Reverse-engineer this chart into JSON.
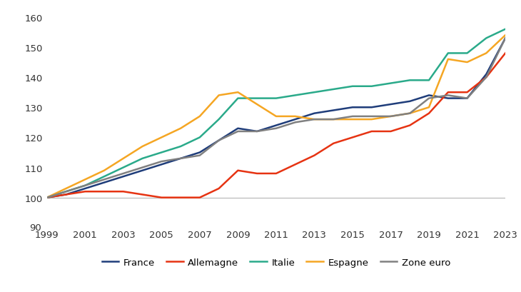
{
  "years": [
    1999,
    2000,
    2001,
    2002,
    2003,
    2004,
    2005,
    2006,
    2007,
    2008,
    2009,
    2010,
    2011,
    2012,
    2013,
    2014,
    2015,
    2016,
    2017,
    2018,
    2019,
    2020,
    2021,
    2022,
    2023
  ],
  "france": [
    100,
    101,
    103,
    105,
    107,
    109,
    111,
    113,
    115,
    119,
    123,
    122,
    124,
    126,
    128,
    129,
    130,
    130,
    131,
    132,
    134,
    133,
    133,
    141,
    153
  ],
  "allemagne": [
    100,
    101,
    102,
    102,
    102,
    101,
    100,
    100,
    100,
    103,
    109,
    108,
    108,
    111,
    114,
    118,
    120,
    122,
    122,
    124,
    128,
    135,
    135,
    140,
    148
  ],
  "italie": [
    100,
    102,
    104,
    107,
    110,
    113,
    115,
    117,
    120,
    126,
    133,
    133,
    133,
    134,
    135,
    136,
    137,
    137,
    138,
    139,
    139,
    148,
    148,
    153,
    156
  ],
  "espagne": [
    100,
    103,
    106,
    109,
    113,
    117,
    120,
    123,
    127,
    134,
    135,
    131,
    127,
    127,
    126,
    126,
    126,
    126,
    127,
    128,
    130,
    146,
    145,
    148,
    154
  ],
  "zone_euro": [
    100,
    102,
    104,
    106,
    108,
    110,
    112,
    113,
    114,
    119,
    122,
    122,
    123,
    125,
    126,
    126,
    127,
    127,
    127,
    128,
    133,
    134,
    133,
    140,
    153
  ],
  "colors": {
    "france": "#1f3d7a",
    "allemagne": "#e63312",
    "italie": "#2aaa8a",
    "espagne": "#f5a623",
    "zone_euro": "#808080"
  },
  "ylim": [
    90,
    162
  ],
  "yticks": [
    100,
    110,
    120,
    130,
    140,
    150,
    160
  ],
  "ytick_extra": 90,
  "xticks": [
    1999,
    2001,
    2003,
    2005,
    2007,
    2009,
    2011,
    2013,
    2015,
    2017,
    2019,
    2021,
    2023
  ],
  "xlim": [
    1999,
    2023
  ],
  "linewidth": 1.8,
  "hline_y": 100,
  "hline_color": "#bbbbbb",
  "background_color": "#ffffff",
  "tick_fontsize": 9.5,
  "legend_fontsize": 9.5
}
